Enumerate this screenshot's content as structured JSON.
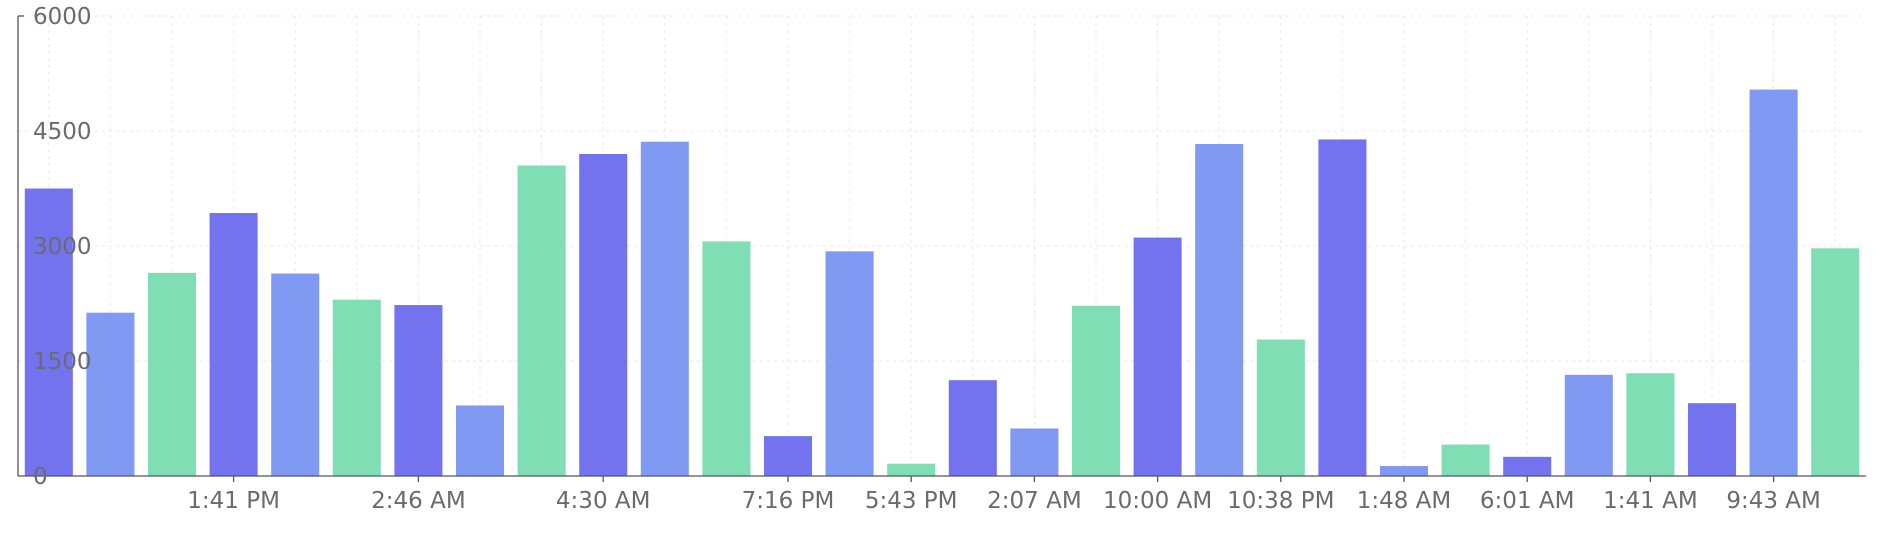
{
  "colors": {
    "purple": "#7373f0",
    "blue": "#8099f2",
    "green": "#80deb5",
    "axis": "#555555",
    "grid": "#e9e9ee",
    "text": "#6b6b6b"
  },
  "chart_data": {
    "type": "bar",
    "title": "",
    "xlabel": "",
    "ylabel": "",
    "ylim": [
      0,
      6000
    ],
    "yticks": [
      "0",
      "1500",
      "3000",
      "4500",
      "6000"
    ],
    "grid": true,
    "legend": "none",
    "x_tick_labels": [
      {
        "index": 3,
        "label": "1:41 PM"
      },
      {
        "index": 6,
        "label": "2:46 AM"
      },
      {
        "index": 9,
        "label": "4:30 AM"
      },
      {
        "index": 12,
        "label": "7:16 PM"
      },
      {
        "index": 14,
        "label": "5:43 PM"
      },
      {
        "index": 16,
        "label": "2:07 AM"
      },
      {
        "index": 18,
        "label": "10:00 AM"
      },
      {
        "index": 20,
        "label": "10:38 PM"
      },
      {
        "index": 22,
        "label": "1:48 AM"
      },
      {
        "index": 24,
        "label": "6:01 AM"
      },
      {
        "index": 26,
        "label": "1:41 AM"
      },
      {
        "index": 28,
        "label": "9:43 AM"
      }
    ],
    "bars": [
      {
        "value": 3750,
        "color": "purple"
      },
      {
        "value": 2130,
        "color": "blue"
      },
      {
        "value": 2650,
        "color": "green"
      },
      {
        "value": 3430,
        "color": "purple"
      },
      {
        "value": 2640,
        "color": "blue"
      },
      {
        "value": 2300,
        "color": "green"
      },
      {
        "value": 2230,
        "color": "purple"
      },
      {
        "value": 920,
        "color": "blue"
      },
      {
        "value": 4050,
        "color": "green"
      },
      {
        "value": 4200,
        "color": "purple"
      },
      {
        "value": 4360,
        "color": "blue"
      },
      {
        "value": 3060,
        "color": "green"
      },
      {
        "value": 520,
        "color": "purple"
      },
      {
        "value": 2930,
        "color": "blue"
      },
      {
        "value": 160,
        "color": "green"
      },
      {
        "value": 1250,
        "color": "purple"
      },
      {
        "value": 620,
        "color": "blue"
      },
      {
        "value": 2220,
        "color": "green"
      },
      {
        "value": 3110,
        "color": "purple"
      },
      {
        "value": 4330,
        "color": "blue"
      },
      {
        "value": 1780,
        "color": "green"
      },
      {
        "value": 4390,
        "color": "purple"
      },
      {
        "value": 130,
        "color": "blue"
      },
      {
        "value": 410,
        "color": "green"
      },
      {
        "value": 250,
        "color": "purple"
      },
      {
        "value": 1320,
        "color": "blue"
      },
      {
        "value": 1340,
        "color": "green"
      },
      {
        "value": 950,
        "color": "purple"
      },
      {
        "value": 5040,
        "color": "blue"
      },
      {
        "value": 2970,
        "color": "green"
      }
    ]
  }
}
